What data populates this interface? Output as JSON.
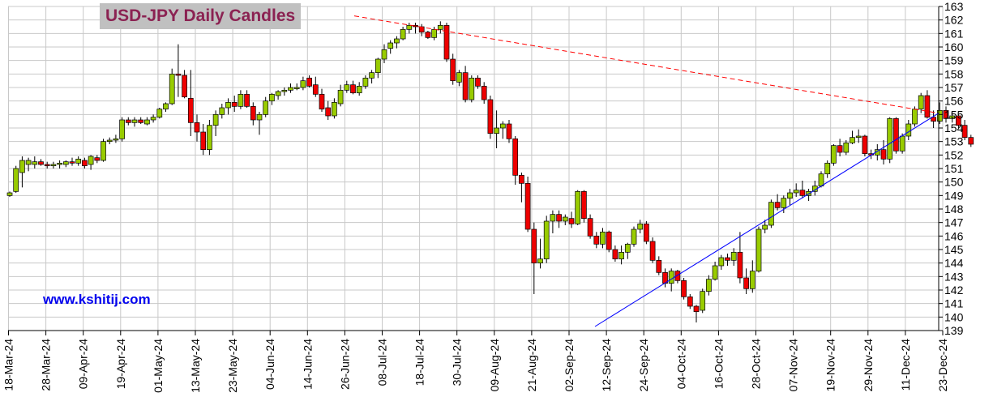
{
  "title": "USD-JPY Daily Candles",
  "website": "www.kshitij.com",
  "colors": {
    "up": "#99cc00",
    "down": "#ee0000",
    "grid": "#c8c8c8",
    "resistance": "#ff0000",
    "support": "#0000ff"
  },
  "chart_data": {
    "type": "candlestick",
    "title": "USD-JPY Daily Candles",
    "y_axis": {
      "side": "right",
      "min": 139,
      "max": 163,
      "step": 1
    },
    "grid": true,
    "x_tick_labels": [
      "18-Mar-24",
      "28-Mar-24",
      "09-Apr-24",
      "19-Apr-24",
      "01-May-24",
      "13-May-24",
      "23-May-24",
      "04-Jun-24",
      "14-Jun-24",
      "26-Jun-24",
      "08-Jul-24",
      "18-Jul-24",
      "30-Jul-24",
      "09-Aug-24",
      "21-Aug-24",
      "02-Sep-24",
      "12-Sep-24",
      "24-Sep-24",
      "04-Oct-24",
      "16-Oct-24",
      "28-Oct-24",
      "07-Nov-24",
      "19-Nov-24",
      "29-Nov-24",
      "11-Dec-24",
      "23-Dec-24"
    ],
    "trendlines": [
      {
        "kind": "resistance",
        "style": "dashed",
        "from": {
          "x": "26-Jun-24",
          "y": 162.3
        },
        "to": {
          "x": "31-Dec-24",
          "y": 155.1
        }
      },
      {
        "kind": "support",
        "style": "solid",
        "from": {
          "x": "11-Sep-24",
          "y": 139.3
        },
        "to": {
          "x": "31-Dec-24",
          "y": 155.1
        }
      }
    ],
    "candles": [
      {
        "o": 149,
        "h": 149.3,
        "l": 148.9,
        "c": 149.2
      },
      {
        "o": 149.3,
        "h": 151.2,
        "l": 149.2,
        "c": 151
      },
      {
        "o": 150.7,
        "h": 151.9,
        "l": 149.6,
        "c": 151.6
      },
      {
        "o": 151.3,
        "h": 151.8,
        "l": 150.8,
        "c": 151.6
      },
      {
        "o": 151.3,
        "h": 151.9,
        "l": 151,
        "c": 151.5
      },
      {
        "o": 151.5,
        "h": 151.7,
        "l": 151.2,
        "c": 151.3
      },
      {
        "o": 151.3,
        "h": 151.5,
        "l": 151,
        "c": 151.2
      },
      {
        "o": 151.2,
        "h": 151.5,
        "l": 151,
        "c": 151.3
      },
      {
        "o": 151.3,
        "h": 151.6,
        "l": 151,
        "c": 151.4
      },
      {
        "o": 151.3,
        "h": 151.6,
        "l": 151.1,
        "c": 151.5
      },
      {
        "o": 151.5,
        "h": 151.8,
        "l": 151.2,
        "c": 151.4
      },
      {
        "o": 151.4,
        "h": 151.9,
        "l": 151.2,
        "c": 151.7
      },
      {
        "o": 151.6,
        "h": 151.8,
        "l": 151,
        "c": 151.2
      },
      {
        "o": 151.3,
        "h": 152,
        "l": 150.9,
        "c": 151.9
      },
      {
        "o": 151.8,
        "h": 152,
        "l": 151.4,
        "c": 151.6
      },
      {
        "o": 151.6,
        "h": 153.2,
        "l": 151.5,
        "c": 153
      },
      {
        "o": 153,
        "h": 153.3,
        "l": 152.8,
        "c": 153.1
      },
      {
        "o": 153.1,
        "h": 153.5,
        "l": 152.9,
        "c": 153.2
      },
      {
        "o": 153.2,
        "h": 154.8,
        "l": 153,
        "c": 154.6
      },
      {
        "o": 154.6,
        "h": 154.8,
        "l": 154.2,
        "c": 154.4
      },
      {
        "o": 154.4,
        "h": 154.8,
        "l": 154.1,
        "c": 154.6
      },
      {
        "o": 154.6,
        "h": 154.8,
        "l": 154.3,
        "c": 154.4
      },
      {
        "o": 154.3,
        "h": 154.8,
        "l": 154.2,
        "c": 154.6
      },
      {
        "o": 154.6,
        "h": 155,
        "l": 154.4,
        "c": 154.8
      },
      {
        "o": 154.8,
        "h": 155.5,
        "l": 154.7,
        "c": 155.4
      },
      {
        "o": 155.4,
        "h": 155.9,
        "l": 155.2,
        "c": 155.8
      },
      {
        "o": 155.8,
        "h": 158.4,
        "l": 155.7,
        "c": 158
      },
      {
        "o": 158,
        "h": 160.2,
        "l": 156.3,
        "c": 157.9
      },
      {
        "o": 157.9,
        "h": 158.3,
        "l": 156.2,
        "c": 156.3
      },
      {
        "o": 156.2,
        "h": 158.3,
        "l": 153.4,
        "c": 154.4
      },
      {
        "o": 154.4,
        "h": 155,
        "l": 153,
        "c": 153.7
      },
      {
        "o": 153.7,
        "h": 154.3,
        "l": 152,
        "c": 152.4
      },
      {
        "o": 152.4,
        "h": 154.6,
        "l": 152,
        "c": 154.2
      },
      {
        "o": 154.2,
        "h": 155.3,
        "l": 153.4,
        "c": 155
      },
      {
        "o": 155,
        "h": 155.8,
        "l": 154.7,
        "c": 155.5
      },
      {
        "o": 155.5,
        "h": 156.2,
        "l": 155,
        "c": 155.9
      },
      {
        "o": 155.9,
        "h": 156.4,
        "l": 155.2,
        "c": 155.6
      },
      {
        "o": 155.6,
        "h": 156.8,
        "l": 155.4,
        "c": 156.5
      },
      {
        "o": 156.5,
        "h": 156.8,
        "l": 155.5,
        "c": 155.6
      },
      {
        "o": 155.6,
        "h": 155.9,
        "l": 154.2,
        "c": 154.6
      },
      {
        "o": 154.6,
        "h": 155.2,
        "l": 153.5,
        "c": 155
      },
      {
        "o": 155,
        "h": 156.3,
        "l": 154.8,
        "c": 156
      },
      {
        "o": 156,
        "h": 156.6,
        "l": 155.7,
        "c": 156.5
      },
      {
        "o": 156.4,
        "h": 156.8,
        "l": 156.1,
        "c": 156.7
      },
      {
        "o": 156.7,
        "h": 157,
        "l": 156.4,
        "c": 156.8
      },
      {
        "o": 156.8,
        "h": 157.3,
        "l": 156.6,
        "c": 157
      },
      {
        "o": 157,
        "h": 157.3,
        "l": 156.8,
        "c": 157
      },
      {
        "o": 157,
        "h": 157.8,
        "l": 156.8,
        "c": 157.5
      },
      {
        "o": 157.7,
        "h": 157.9,
        "l": 157,
        "c": 157.1
      },
      {
        "o": 157.2,
        "h": 157.8,
        "l": 156.3,
        "c": 156.5
      },
      {
        "o": 156.5,
        "h": 156.9,
        "l": 155.2,
        "c": 155.4
      },
      {
        "o": 155.5,
        "h": 156,
        "l": 154.6,
        "c": 154.9
      },
      {
        "o": 154.9,
        "h": 156.2,
        "l": 154.7,
        "c": 155.9
      },
      {
        "o": 155.8,
        "h": 157.2,
        "l": 155.6,
        "c": 156.8
      },
      {
        "o": 156.8,
        "h": 157.5,
        "l": 156.6,
        "c": 157.2
      },
      {
        "o": 157.2,
        "h": 157.5,
        "l": 156.5,
        "c": 156.6
      },
      {
        "o": 156.6,
        "h": 157.4,
        "l": 156.4,
        "c": 157.1
      },
      {
        "o": 157.1,
        "h": 157.9,
        "l": 156.9,
        "c": 157.7
      },
      {
        "o": 157.7,
        "h": 158.3,
        "l": 157.3,
        "c": 158.1
      },
      {
        "o": 158.1,
        "h": 159.2,
        "l": 157.7,
        "c": 159.1
      },
      {
        "o": 159.1,
        "h": 160.2,
        "l": 158.8,
        "c": 159.8
      },
      {
        "o": 159.9,
        "h": 160.5,
        "l": 159.5,
        "c": 160.3
      },
      {
        "o": 160.3,
        "h": 160.8,
        "l": 159.9,
        "c": 160.6
      },
      {
        "o": 160.6,
        "h": 161.5,
        "l": 160.5,
        "c": 161.3
      },
      {
        "o": 161.3,
        "h": 161.8,
        "l": 161,
        "c": 161.6
      },
      {
        "o": 161.6,
        "h": 161.8,
        "l": 161,
        "c": 161.5
      },
      {
        "o": 161.5,
        "h": 161.7,
        "l": 160.8,
        "c": 161.1
      },
      {
        "o": 161.1,
        "h": 161.2,
        "l": 160.6,
        "c": 160.7
      },
      {
        "o": 160.7,
        "h": 161.5,
        "l": 160.5,
        "c": 161.3
      },
      {
        "o": 161.3,
        "h": 161.9,
        "l": 161,
        "c": 161.6
      },
      {
        "o": 161.6,
        "h": 161.8,
        "l": 158.9,
        "c": 159.1
      },
      {
        "o": 159.1,
        "h": 159.5,
        "l": 157.2,
        "c": 157.5
      },
      {
        "o": 157.4,
        "h": 158.3,
        "l": 157.1,
        "c": 158.1
      },
      {
        "o": 158.1,
        "h": 158.6,
        "l": 155.9,
        "c": 156.1
      },
      {
        "o": 156.1,
        "h": 157.9,
        "l": 155.9,
        "c": 157.7
      },
      {
        "o": 157.7,
        "h": 157.9,
        "l": 156.9,
        "c": 157.1
      },
      {
        "o": 157.1,
        "h": 157.4,
        "l": 155.8,
        "c": 156.1
      },
      {
        "o": 156.1,
        "h": 156.4,
        "l": 153.2,
        "c": 153.6
      },
      {
        "o": 153.6,
        "h": 155.3,
        "l": 152.5,
        "c": 154
      },
      {
        "o": 154,
        "h": 154.5,
        "l": 153.2,
        "c": 154.3
      },
      {
        "o": 154.3,
        "h": 154.6,
        "l": 152.9,
        "c": 153.2
      },
      {
        "o": 153.2,
        "h": 153.4,
        "l": 149.8,
        "c": 150.5
      },
      {
        "o": 150.5,
        "h": 150.7,
        "l": 148.5,
        "c": 149.9
      },
      {
        "o": 149.9,
        "h": 150.4,
        "l": 146.3,
        "c": 146.5
      },
      {
        "o": 146.5,
        "h": 147,
        "l": 141.7,
        "c": 144
      },
      {
        "o": 144,
        "h": 145.8,
        "l": 143.6,
        "c": 144.3
      },
      {
        "o": 144.3,
        "h": 147.5,
        "l": 144,
        "c": 147.1
      },
      {
        "o": 147.1,
        "h": 147.9,
        "l": 146.2,
        "c": 147.6
      },
      {
        "o": 147.6,
        "h": 147.9,
        "l": 146.6,
        "c": 147.1
      },
      {
        "o": 147.1,
        "h": 147.6,
        "l": 146.8,
        "c": 147.4
      },
      {
        "o": 147.3,
        "h": 147.8,
        "l": 146.6,
        "c": 146.9
      },
      {
        "o": 146.9,
        "h": 149.4,
        "l": 146.8,
        "c": 149.3
      },
      {
        "o": 149.3,
        "h": 149.4,
        "l": 147,
        "c": 147.3
      },
      {
        "o": 147.3,
        "h": 147.6,
        "l": 145.8,
        "c": 146
      },
      {
        "o": 146,
        "h": 146.3,
        "l": 145.1,
        "c": 145.4
      },
      {
        "o": 145.4,
        "h": 146.6,
        "l": 145.1,
        "c": 146.3
      },
      {
        "o": 146.3,
        "h": 146.4,
        "l": 144.8,
        "c": 145
      },
      {
        "o": 145,
        "h": 145.3,
        "l": 144.1,
        "c": 144.3
      },
      {
        "o": 144.3,
        "h": 145.3,
        "l": 143.9,
        "c": 144.8
      },
      {
        "o": 144.8,
        "h": 145.5,
        "l": 144.3,
        "c": 145.4
      },
      {
        "o": 145.4,
        "h": 146.7,
        "l": 145.2,
        "c": 146.5
      },
      {
        "o": 146.5,
        "h": 147.2,
        "l": 146.2,
        "c": 146.9
      },
      {
        "o": 146.9,
        "h": 147.1,
        "l": 145.4,
        "c": 145.6
      },
      {
        "o": 145.6,
        "h": 145.9,
        "l": 144,
        "c": 144.2
      },
      {
        "o": 144.2,
        "h": 144.5,
        "l": 143.1,
        "c": 143.3
      },
      {
        "o": 143.3,
        "h": 143.6,
        "l": 142.2,
        "c": 142.5
      },
      {
        "o": 142.5,
        "h": 143.6,
        "l": 141.9,
        "c": 143.4
      },
      {
        "o": 143.4,
        "h": 143.5,
        "l": 142.5,
        "c": 142.7
      },
      {
        "o": 142.7,
        "h": 142.9,
        "l": 141.3,
        "c": 141.5
      },
      {
        "o": 141.5,
        "h": 141.7,
        "l": 140.6,
        "c": 140.8
      },
      {
        "o": 140.8,
        "h": 140.9,
        "l": 139.6,
        "c": 140.4
      },
      {
        "o": 140.5,
        "h": 142.1,
        "l": 140.3,
        "c": 141.9
      },
      {
        "o": 141.9,
        "h": 143.1,
        "l": 141.6,
        "c": 142.8
      },
      {
        "o": 142.8,
        "h": 144.1,
        "l": 142.7,
        "c": 143.8
      },
      {
        "o": 143.8,
        "h": 144.6,
        "l": 143.5,
        "c": 144.4
      },
      {
        "o": 144.4,
        "h": 144.7,
        "l": 143.8,
        "c": 144.2
      },
      {
        "o": 144.2,
        "h": 145.1,
        "l": 143.8,
        "c": 144.8
      },
      {
        "o": 144.8,
        "h": 146.3,
        "l": 142.5,
        "c": 142.9
      },
      {
        "o": 142.9,
        "h": 143.6,
        "l": 141.7,
        "c": 142.1
      },
      {
        "o": 142.1,
        "h": 144.2,
        "l": 141.8,
        "c": 143.4
      },
      {
        "o": 143.4,
        "h": 146.7,
        "l": 143.3,
        "c": 146.5
      },
      {
        "o": 146.5,
        "h": 147.2,
        "l": 146.2,
        "c": 146.8
      },
      {
        "o": 146.8,
        "h": 148.7,
        "l": 146.6,
        "c": 148.5
      },
      {
        "o": 148.5,
        "h": 149.1,
        "l": 147.9,
        "c": 148.1
      },
      {
        "o": 148.1,
        "h": 149,
        "l": 147.7,
        "c": 148.8
      },
      {
        "o": 148.8,
        "h": 149.5,
        "l": 148.3,
        "c": 149.2
      },
      {
        "o": 149.2,
        "h": 149.9,
        "l": 148.9,
        "c": 149.4
      },
      {
        "o": 149.4,
        "h": 150.1,
        "l": 148.8,
        "c": 149
      },
      {
        "o": 149,
        "h": 149.5,
        "l": 148.6,
        "c": 149.3
      },
      {
        "o": 149.3,
        "h": 150.1,
        "l": 149,
        "c": 149.7
      },
      {
        "o": 149.7,
        "h": 150.8,
        "l": 149.6,
        "c": 150.6
      },
      {
        "o": 150.6,
        "h": 151.6,
        "l": 150.3,
        "c": 151.4
      },
      {
        "o": 151.4,
        "h": 152.8,
        "l": 151.2,
        "c": 152.7
      },
      {
        "o": 152.7,
        "h": 153.2,
        "l": 151.9,
        "c": 152.2
      },
      {
        "o": 152.2,
        "h": 153.1,
        "l": 152,
        "c": 152.9
      },
      {
        "o": 152.9,
        "h": 153.8,
        "l": 152.8,
        "c": 153.3
      },
      {
        "o": 153.3,
        "h": 153.9,
        "l": 152.9,
        "c": 153.4
      },
      {
        "o": 153.4,
        "h": 153.5,
        "l": 151.9,
        "c": 152.1
      },
      {
        "o": 152.1,
        "h": 152.4,
        "l": 151.7,
        "c": 152
      },
      {
        "o": 152,
        "h": 152.8,
        "l": 151.6,
        "c": 152.4
      },
      {
        "o": 152.4,
        "h": 153.1,
        "l": 151.3,
        "c": 151.7
      },
      {
        "o": 151.7,
        "h": 154.8,
        "l": 151.4,
        "c": 154.7
      },
      {
        "o": 154.7,
        "h": 154.8,
        "l": 152.1,
        "c": 152.3
      },
      {
        "o": 152.3,
        "h": 153.6,
        "l": 152.1,
        "c": 153.4
      },
      {
        "o": 153.4,
        "h": 154.6,
        "l": 153.1,
        "c": 154.3
      },
      {
        "o": 154.3,
        "h": 155.6,
        "l": 154.1,
        "c": 155.4
      },
      {
        "o": 155.4,
        "h": 156.6,
        "l": 155.1,
        "c": 156.4
      },
      {
        "o": 156.4,
        "h": 156.8,
        "l": 154.7,
        "c": 154.8
      },
      {
        "o": 154.8,
        "h": 155.3,
        "l": 154,
        "c": 154.5
      },
      {
        "o": 154.5,
        "h": 155.9,
        "l": 154.3,
        "c": 155.3
      },
      {
        "o": 155.3,
        "h": 155.6,
        "l": 154.4,
        "c": 154.7
      },
      {
        "o": 154.7,
        "h": 155.2,
        "l": 154.4,
        "c": 154.9
      },
      {
        "o": 154.9,
        "h": 155,
        "l": 154,
        "c": 154.2
      },
      {
        "o": 154.2,
        "h": 154.6,
        "l": 153.1,
        "c": 153.3
      },
      {
        "o": 153.3,
        "h": 153.5,
        "l": 152.6,
        "c": 152.8
      }
    ]
  }
}
